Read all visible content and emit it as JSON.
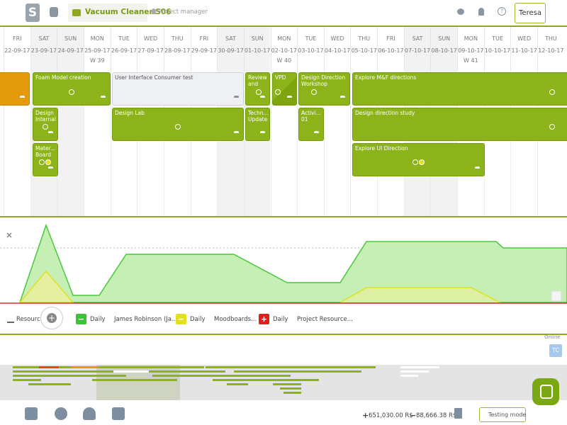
{
  "header": {
    "logo": "S",
    "project": "Vacuum Cleaner S06",
    "role": "Project manager",
    "user": "Teresa"
  },
  "timeline": {
    "days": [
      {
        "day": "FRI",
        "date": "22-09-17"
      },
      {
        "day": "SAT",
        "date": "23-09-17"
      },
      {
        "day": "SUN",
        "date": "24-09-17"
      },
      {
        "day": "MON",
        "date": "25-09-17",
        "week": "W 39"
      },
      {
        "day": "TUE",
        "date": "26-09-17"
      },
      {
        "day": "WED",
        "date": "27-09-17"
      },
      {
        "day": "THU",
        "date": "28-09-17"
      },
      {
        "day": "FRI",
        "date": "29-09-17"
      },
      {
        "day": "SAT",
        "date": "30-09-17"
      },
      {
        "day": "SUN",
        "date": "01-10-17"
      },
      {
        "day": "MON",
        "date": "02-10-17",
        "week": "W 40"
      },
      {
        "day": "TUE",
        "date": "03-10-17"
      },
      {
        "day": "WED",
        "date": "04-10-17"
      },
      {
        "day": "THU",
        "date": "05-10-17"
      },
      {
        "day": "FRI",
        "date": "06-10-17"
      },
      {
        "day": "SAT",
        "date": "07-10-17"
      },
      {
        "day": "SUN",
        "date": "08-10-17"
      },
      {
        "day": "MON",
        "date": "09-10-17",
        "week": "W 41"
      },
      {
        "day": "TUE",
        "date": "10-10-17"
      },
      {
        "day": "WED",
        "date": "11-10-17"
      },
      {
        "day": "THU",
        "date": "12-10-17"
      }
    ]
  },
  "tasks": [
    "Foam Model creation",
    "User Interface Consumer test",
    "Review and",
    "VPD",
    "Design Direction Workshop",
    "Explore M&F directions",
    "Design Internal",
    "Design Lab",
    "Techn... Update",
    "Activi... 01",
    "Design direction study",
    "Mater... Board",
    "Explore UI Direction"
  ],
  "resources": {
    "label": "Resources",
    "filters": [
      {
        "period": "Daily",
        "name": "James Robinson (Ja..."
      },
      {
        "period": "Daily",
        "name": "Moodboards..."
      },
      {
        "period": "Daily",
        "name": "Project Resource..."
      }
    ]
  },
  "presence": {
    "status": "Online",
    "initials": "TC"
  },
  "footer": {
    "income": "651,030.00 R$",
    "expense": "88,666.38 R$",
    "mode": "Testing mode"
  }
}
